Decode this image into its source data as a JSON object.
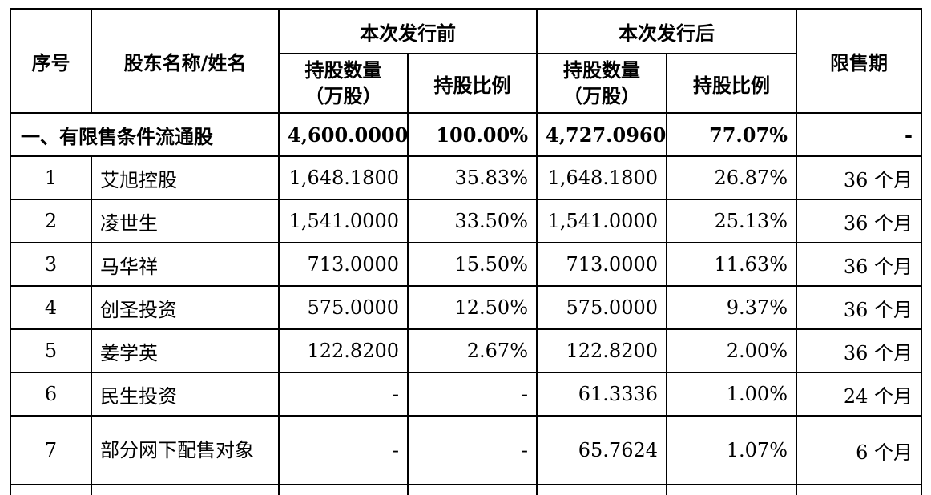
{
  "table": {
    "headers": {
      "seq": "序号",
      "name": "股东名称/姓名",
      "before_group": "本次发行前",
      "after_group": "本次发行后",
      "lockup": "限售期",
      "shares_line1": "持股数量",
      "shares_line2": "（万股）",
      "ratio": "持股比例"
    },
    "section": {
      "label": "一、有限售条件流通股",
      "before_shares": "4,600.0000",
      "before_ratio": "100.00%",
      "after_shares": "4,727.0960",
      "after_ratio": "77.07%",
      "lockup": "-"
    },
    "rows": [
      {
        "seq": "1",
        "name": "艾旭控股",
        "before_shares": "1,648.1800",
        "before_ratio": "35.83%",
        "after_shares": "1,648.1800",
        "after_ratio": "26.87%",
        "lockup": "36 个月"
      },
      {
        "seq": "2",
        "name": "凌世生",
        "before_shares": "1,541.0000",
        "before_ratio": "33.50%",
        "after_shares": "1,541.0000",
        "after_ratio": "25.13%",
        "lockup": "36 个月"
      },
      {
        "seq": "3",
        "name": "马华祥",
        "before_shares": "713.0000",
        "before_ratio": "15.50%",
        "after_shares": "713.0000",
        "after_ratio": "11.63%",
        "lockup": "36 个月"
      },
      {
        "seq": "4",
        "name": "创圣投资",
        "before_shares": "575.0000",
        "before_ratio": "12.50%",
        "after_shares": "575.0000",
        "after_ratio": "9.37%",
        "lockup": "36 个月"
      },
      {
        "seq": "5",
        "name": "姜学英",
        "before_shares": "122.8200",
        "before_ratio": "2.67%",
        "after_shares": "122.8200",
        "after_ratio": "2.00%",
        "lockup": "36 个月"
      },
      {
        "seq": "6",
        "name": "民生投资",
        "before_shares": "-",
        "before_ratio": "-",
        "after_shares": "61.3336",
        "after_ratio": "1.00%",
        "lockup": "24 个月"
      },
      {
        "seq": "7",
        "name": "部分网下配售对象",
        "before_shares": "-",
        "before_ratio": "-",
        "after_shares": "65.7624",
        "after_ratio": "1.07%",
        "lockup": "6 个月"
      }
    ]
  }
}
